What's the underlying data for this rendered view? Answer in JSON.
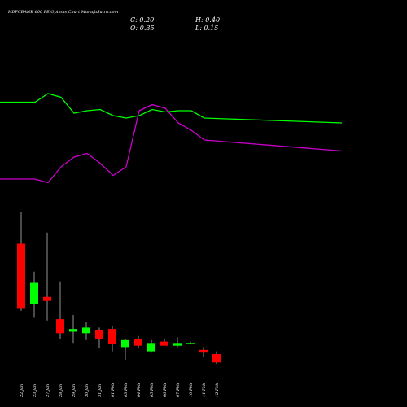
{
  "header": {
    "title": "HDFCBANK 600 PE Options Chart MunafaSutra.com",
    "close": "C: 0.20",
    "open": "O: 0.35",
    "high": "H: 0.40",
    "low": "L: 0.15"
  },
  "chart_data": {
    "type": "candlestick",
    "categories": [
      "22 Jan",
      "23 Jan",
      "27 Jan",
      "28 Jan",
      "29 Jan",
      "30 Jan",
      "31 Jan",
      "01 Feb",
      "03 Feb",
      "04 Feb",
      "05 Feb",
      "06 Feb",
      "07 Feb",
      "10 Feb",
      "11 Feb",
      "12 Feb"
    ],
    "candles": [
      {
        "open": 5.1,
        "high": 6.25,
        "low": 2.7,
        "close": 2.8
      },
      {
        "open": 2.95,
        "high": 4.1,
        "low": 2.45,
        "close": 3.7
      },
      {
        "open": 3.2,
        "high": 5.5,
        "low": 2.35,
        "close": 3.05
      },
      {
        "open": 2.4,
        "high": 3.75,
        "low": 1.7,
        "close": 1.9
      },
      {
        "open": 1.95,
        "high": 2.55,
        "low": 1.55,
        "close": 2.05
      },
      {
        "open": 1.9,
        "high": 2.3,
        "low": 1.65,
        "close": 2.1
      },
      {
        "open": 2.0,
        "high": 2.1,
        "low": 1.35,
        "close": 1.7
      },
      {
        "open": 2.05,
        "high": 2.15,
        "low": 1.25,
        "close": 1.5
      },
      {
        "open": 1.4,
        "high": 1.7,
        "low": 0.95,
        "close": 1.65
      },
      {
        "open": 1.7,
        "high": 1.8,
        "low": 1.35,
        "close": 1.45
      },
      {
        "open": 1.25,
        "high": 1.65,
        "low": 1.2,
        "close": 1.55
      },
      {
        "open": 1.6,
        "high": 1.7,
        "low": 1.45,
        "close": 1.45
      },
      {
        "open": 1.45,
        "high": 1.75,
        "low": 1.4,
        "close": 1.55
      },
      {
        "open": 1.55,
        "high": 1.6,
        "low": 1.5,
        "close": 1.55
      },
      {
        "open": 1.3,
        "high": 1.4,
        "low": 1.05,
        "close": 1.2
      },
      {
        "open": 1.15,
        "high": 1.25,
        "low": 0.8,
        "close": 0.85
      }
    ],
    "series": [
      {
        "color": "#00ff00",
        "values": [
          0.83,
          0.83,
          0.9,
          0.87,
          0.74,
          0.76,
          0.77,
          0.72,
          0.7,
          0.72,
          0.77,
          0.75,
          0.76,
          0.76,
          0.7,
          0.66
        ]
      },
      {
        "color": "#cc00cc",
        "values": [
          0.2,
          0.2,
          0.17,
          0.3,
          0.38,
          0.41,
          0.33,
          0.23,
          0.3,
          0.76,
          0.81,
          0.78,
          0.66,
          0.6,
          0.52,
          0.43
        ]
      }
    ],
    "up_color": "#00ff00",
    "down_color": "#ff0000",
    "xlabel": "",
    "ylabel": "",
    "grid": false
  }
}
